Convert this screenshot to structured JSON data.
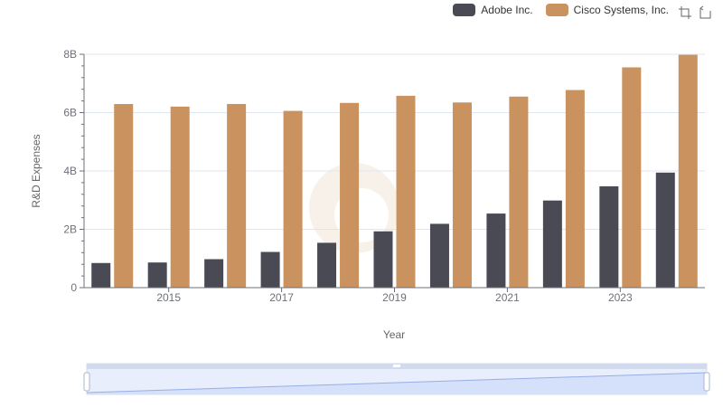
{
  "legend": [
    {
      "label": "Adobe Inc.",
      "color": "#4a4a55"
    },
    {
      "label": "Cisco Systems, Inc.",
      "color": "#c9925e"
    }
  ],
  "toolbox": {
    "icons": [
      "zoom-icon",
      "restore-icon"
    ]
  },
  "chart_data": {
    "type": "bar",
    "x": [
      2014,
      2015,
      2016,
      2017,
      2018,
      2019,
      2020,
      2021,
      2022,
      2023,
      2024
    ],
    "x_tick_labels": [
      "2015",
      "2017",
      "2019",
      "2021",
      "2023"
    ],
    "y_tick_labels": [
      "0",
      "2B",
      "4B",
      "6B",
      "8B"
    ],
    "xlabel": "Year",
    "ylabel": "R&D Expenses",
    "ylim": [
      0,
      8000000000
    ],
    "grid": true,
    "legend_position": "top-right",
    "series": [
      {
        "name": "Adobe Inc.",
        "color": "#4a4a55",
        "values": [
          844400000,
          862700000,
          975987000,
          1224059000,
          1537812000,
          1930000000,
          2188000000,
          2540000000,
          2987000000,
          3473000000,
          3944000000
        ]
      },
      {
        "name": "Cisco Systems, Inc.",
        "color": "#c9925e",
        "values": [
          6294000000,
          6207000000,
          6296000000,
          6059000000,
          6332000000,
          6577000000,
          6347000000,
          6549000000,
          6774000000,
          7551000000,
          7983000000
        ]
      }
    ]
  }
}
